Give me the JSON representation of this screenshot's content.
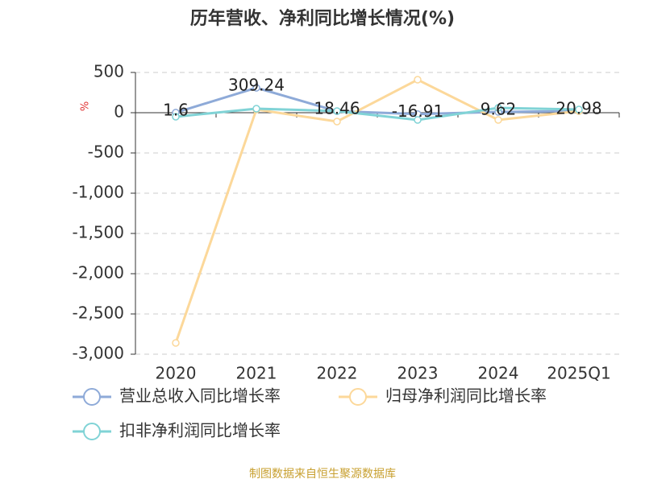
{
  "chart_data": {
    "type": "line",
    "title": "历年营收、净利同比增长情况(%)",
    "y_label": "%",
    "source": "制图数据来自恒生聚源数据库",
    "categories": [
      "2020",
      "2021",
      "2022",
      "2023",
      "2024",
      "2025Q1"
    ],
    "series": [
      {
        "name": "营业总收入同比增长率",
        "color": "#8eaad8",
        "values": [
          1.6,
          309.24,
          18.46,
          -16.91,
          9.62,
          20.98
        ],
        "show_labels": true
      },
      {
        "name": "归母净利润同比增长率",
        "color": "#fcd89a",
        "values": [
          -2860,
          40,
          -110,
          410,
          -90,
          20
        ]
      },
      {
        "name": "扣非净利润同比增长率",
        "color": "#80d3d6",
        "values": [
          -50,
          50,
          20,
          -90,
          60,
          40
        ]
      }
    ],
    "ylim": [
      -3000,
      500
    ],
    "yticks": [
      {
        "value": -3000,
        "label": "-3,000"
      },
      {
        "value": -2500,
        "label": "-2,500"
      },
      {
        "value": -2000,
        "label": "-2,000"
      },
      {
        "value": -1500,
        "label": "-1,500"
      },
      {
        "value": -1000,
        "label": "-1,000"
      },
      -500,
      0,
      500
    ],
    "grid": true
  }
}
